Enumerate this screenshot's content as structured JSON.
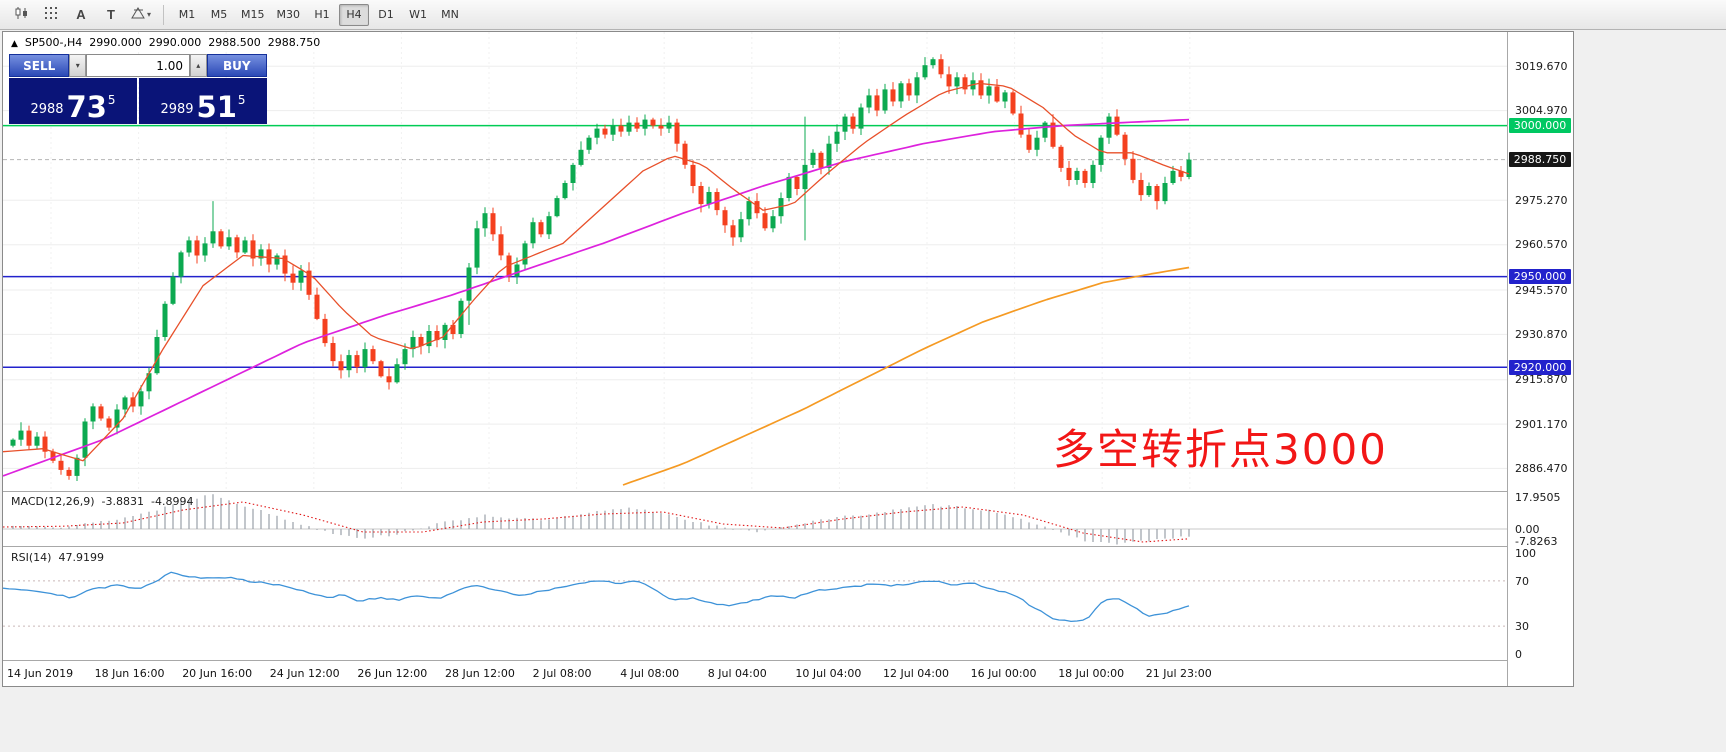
{
  "toolbar": {
    "tools": [
      {
        "name": "chart-type",
        "label": ""
      },
      {
        "name": "grid",
        "label": ""
      },
      {
        "name": "text-annotation",
        "label": "A"
      },
      {
        "name": "text-box",
        "label": "T"
      },
      {
        "name": "shapes",
        "label": ""
      }
    ],
    "timeframes": [
      {
        "label": "M1",
        "active": false
      },
      {
        "label": "M5",
        "active": false
      },
      {
        "label": "M15",
        "active": false
      },
      {
        "label": "M30",
        "active": false
      },
      {
        "label": "H1",
        "active": false
      },
      {
        "label": "H4",
        "active": true
      },
      {
        "label": "D1",
        "active": false
      },
      {
        "label": "W1",
        "active": false
      },
      {
        "label": "MN",
        "active": false
      }
    ]
  },
  "symbol_bar": {
    "symbol": "SP500-,H4",
    "open": "2990.000",
    "high": "2990.000",
    "low": "2988.500",
    "close": "2988.750"
  },
  "trade_panel": {
    "sell_label": "SELL",
    "buy_label": "BUY",
    "volume": "1.00",
    "sell_price": {
      "prefix": "2988",
      "big": "73",
      "sup": "5"
    },
    "buy_price": {
      "prefix": "2989",
      "big": "51",
      "sup": "5"
    }
  },
  "annotation": {
    "text": "多空转折点3000",
    "color": "#f21616"
  },
  "price_axis": {
    "labels": [
      {
        "text": "3019.670",
        "price": 3019.67
      },
      {
        "text": "3004.970",
        "price": 3004.97
      },
      {
        "text": "2975.270",
        "price": 2975.27
      },
      {
        "text": "2960.570",
        "price": 2960.57
      },
      {
        "text": "2945.570",
        "price": 2945.57
      },
      {
        "text": "2930.870",
        "price": 2930.87
      },
      {
        "text": "2915.870",
        "price": 2915.87
      },
      {
        "text": "2901.170",
        "price": 2901.17
      },
      {
        "text": "2886.470",
        "price": 2886.47
      }
    ],
    "badges": [
      {
        "text": "3000.000",
        "price": 3000.0,
        "bg": "#00c862",
        "fg": "#ffffff"
      },
      {
        "text": "2988.750",
        "price": 2988.75,
        "bg": "#161616",
        "fg": "#ffffff"
      },
      {
        "text": "2950.000",
        "price": 2950.0,
        "bg": "#2222cc",
        "fg": "#ffffff"
      },
      {
        "text": "2920.000",
        "price": 2920.0,
        "bg": "#2222cc",
        "fg": "#ffffff"
      }
    ]
  },
  "chart_data": {
    "type": "candlestick",
    "symbol": "SP500-",
    "timeframe": "H4",
    "price_range": [
      2879,
      3031
    ],
    "first_open": 2894,
    "up_color": "#0ca950",
    "down_color": "#f4401f",
    "closes": [
      2896,
      2899,
      2894,
      2897,
      2892,
      2889,
      2886,
      2884,
      2890,
      2902,
      2907,
      2903,
      2900,
      2906,
      2910,
      2907,
      2912,
      2918,
      2930,
      2941,
      2950,
      2958,
      2962,
      2957,
      2961,
      2965,
      2960,
      2963,
      2958,
      2962,
      2956,
      2959,
      2954,
      2957,
      2951,
      2948,
      2952,
      2944,
      2936,
      2928,
      2922,
      2919,
      2924,
      2920,
      2926,
      2922,
      2917,
      2915,
      2921,
      2926,
      2930,
      2927,
      2932,
      2929,
      2934,
      2931,
      2942,
      2953,
      2966,
      2971,
      2964,
      2957,
      2950,
      2954,
      2961,
      2968,
      2964,
      2970,
      2976,
      2981,
      2987,
      2992,
      2996,
      2999,
      2997,
      3000,
      2998,
      3001,
      2999,
      3002,
      3000,
      2999,
      3001,
      2994,
      2987,
      2980,
      2974,
      2978,
      2972,
      2967,
      2963,
      2969,
      2975,
      2971,
      2966,
      2970,
      2976,
      2983,
      2979,
      2987,
      2991,
      2986,
      2994,
      2998,
      3003,
      2999,
      3006,
      3010,
      3005,
      3012,
      3008,
      3014,
      3010,
      3016,
      3020,
      3022,
      3017,
      3013,
      3016,
      3012,
      3015,
      3010,
      3013,
      3008,
      3011,
      3004,
      2997,
      2992,
      2996,
      3001,
      2993,
      2986,
      2982,
      2985,
      2981,
      2987,
      2996,
      3003,
      2997,
      2989,
      2982,
      2977,
      2980,
      2975,
      2981,
      2985,
      2983,
      2988.75
    ],
    "wick_overrides": {
      "25": [
        10,
        1.5
      ],
      "57": [
        1.5,
        8
      ],
      "99": [
        16,
        17
      ]
    },
    "current_price": 2988.75,
    "levels": [
      {
        "price": 3000,
        "color": "#00cc55"
      },
      {
        "price": 2950,
        "color": "#2222cc"
      },
      {
        "price": 2920,
        "color": "#2222cc"
      }
    ],
    "ma_colors": {
      "magenta": "#dd22dd",
      "red": "#e8502a",
      "orange": "#f59a23"
    },
    "ma_magenta": [
      [
        0,
        2884
      ],
      [
        100,
        2896
      ],
      [
        200,
        2912
      ],
      [
        300,
        2928
      ],
      [
        380,
        2937
      ],
      [
        450,
        2944
      ],
      [
        520,
        2952
      ],
      [
        600,
        2961
      ],
      [
        680,
        2971
      ],
      [
        760,
        2980
      ],
      [
        840,
        2988
      ],
      [
        920,
        2994
      ],
      [
        990,
        2998
      ],
      [
        1060,
        3000
      ],
      [
        1120,
        3001
      ],
      [
        1186,
        3002
      ]
    ],
    "ma_red": [
      [
        0,
        2892
      ],
      [
        40,
        2893
      ],
      [
        80,
        2889
      ],
      [
        120,
        2903
      ],
      [
        160,
        2926
      ],
      [
        200,
        2947
      ],
      [
        240,
        2957
      ],
      [
        280,
        2956
      ],
      [
        310,
        2950
      ],
      [
        340,
        2939
      ],
      [
        370,
        2930
      ],
      [
        410,
        2926
      ],
      [
        440,
        2930
      ],
      [
        470,
        2942
      ],
      [
        500,
        2953
      ],
      [
        530,
        2957
      ],
      [
        560,
        2961
      ],
      [
        600,
        2973
      ],
      [
        640,
        2985
      ],
      [
        670,
        2990
      ],
      [
        700,
        2987
      ],
      [
        730,
        2979
      ],
      [
        760,
        2972
      ],
      [
        790,
        2974
      ],
      [
        820,
        2983
      ],
      [
        860,
        2994
      ],
      [
        900,
        3003
      ],
      [
        940,
        3011
      ],
      [
        975,
        3014
      ],
      [
        1005,
        3013
      ],
      [
        1040,
        3006
      ],
      [
        1070,
        2997
      ],
      [
        1100,
        2991
      ],
      [
        1130,
        2991
      ],
      [
        1160,
        2987
      ],
      [
        1186,
        2984
      ]
    ],
    "ma_orange": [
      [
        620,
        2881
      ],
      [
        680,
        2888
      ],
      [
        740,
        2897
      ],
      [
        800,
        2906
      ],
      [
        860,
        2916
      ],
      [
        920,
        2926
      ],
      [
        980,
        2935
      ],
      [
        1040,
        2942
      ],
      [
        1100,
        2948
      ],
      [
        1150,
        2951
      ],
      [
        1186,
        2953
      ]
    ],
    "x_labels": [
      "14 Jun 2019",
      "18 Jun 16:00",
      "20 Jun 16:00",
      "24 Jun 12:00",
      "26 Jun 12:00",
      "28 Jun 12:00",
      "2 Jul 08:00",
      "4 Jul 08:00",
      "8 Jul 04:00",
      "10 Jul 04:00",
      "12 Jul 04:00",
      "16 Jul 00:00",
      "18 Jul 00:00",
      "21 Jul 23:00"
    ],
    "macd": {
      "name": "MACD(12,26,9)",
      "value_main": "-3.8831",
      "value_signal": "-4.8994",
      "range": [
        -8.5,
        18.5
      ],
      "hist_color": "#9aa0a8",
      "signal_color": "#e01818",
      "axis": [
        {
          "text": "17.9505",
          "v": 17.9505
        },
        {
          "text": "0.00",
          "v": 0
        },
        {
          "text": "-7.8263",
          "v": -7.8263
        }
      ],
      "hist": [
        [
          0,
          1.2
        ],
        [
          30,
          2
        ],
        [
          60,
          1
        ],
        [
          90,
          3
        ],
        [
          120,
          5.5
        ],
        [
          150,
          9
        ],
        [
          180,
          14
        ],
        [
          210,
          17.5
        ],
        [
          240,
          12
        ],
        [
          270,
          7
        ],
        [
          300,
          2
        ],
        [
          330,
          -2
        ],
        [
          360,
          -4.5
        ],
        [
          390,
          -3
        ],
        [
          420,
          1
        ],
        [
          450,
          4
        ],
        [
          480,
          7
        ],
        [
          510,
          5.5
        ],
        [
          540,
          4.5
        ],
        [
          570,
          6.5
        ],
        [
          600,
          9
        ],
        [
          630,
          10.5
        ],
        [
          660,
          8
        ],
        [
          690,
          4
        ],
        [
          720,
          0.5
        ],
        [
          750,
          -1.5
        ],
        [
          780,
          1
        ],
        [
          810,
          4
        ],
        [
          840,
          6
        ],
        [
          870,
          8
        ],
        [
          900,
          10
        ],
        [
          930,
          12
        ],
        [
          960,
          11
        ],
        [
          990,
          9
        ],
        [
          1020,
          5
        ],
        [
          1050,
          -1
        ],
        [
          1080,
          -5.5
        ],
        [
          1110,
          -7.5
        ],
        [
          1140,
          -6
        ],
        [
          1165,
          -5
        ],
        [
          1186,
          -3.88
        ]
      ],
      "signal": [
        [
          0,
          1
        ],
        [
          60,
          1.4
        ],
        [
          120,
          3
        ],
        [
          180,
          9.5
        ],
        [
          240,
          13.5
        ],
        [
          300,
          7
        ],
        [
          360,
          -1.5
        ],
        [
          420,
          -1.5
        ],
        [
          480,
          3.5
        ],
        [
          540,
          5
        ],
        [
          600,
          7.5
        ],
        [
          660,
          8.5
        ],
        [
          720,
          2.5
        ],
        [
          780,
          0.5
        ],
        [
          840,
          5
        ],
        [
          900,
          8.5
        ],
        [
          960,
          11
        ],
        [
          1020,
          7
        ],
        [
          1080,
          -2
        ],
        [
          1140,
          -6.5
        ],
        [
          1186,
          -4.9
        ]
      ]
    },
    "rsi": {
      "name": "RSI(14)",
      "value": "47.9199",
      "range": [
        0,
        100
      ],
      "line_color": "#3d92d8",
      "axis": [
        {
          "text": "100",
          "v": 100
        },
        {
          "text": "70",
          "v": 70
        },
        {
          "text": "30",
          "v": 30
        },
        {
          "text": "0",
          "v": 0
        }
      ],
      "levels": [
        70,
        30
      ],
      "points": [
        [
          0,
          64
        ],
        [
          25,
          62
        ],
        [
          50,
          59
        ],
        [
          70,
          55
        ],
        [
          90,
          63
        ],
        [
          115,
          66
        ],
        [
          135,
          63
        ],
        [
          155,
          71
        ],
        [
          168,
          78
        ],
        [
          185,
          74
        ],
        [
          205,
          72
        ],
        [
          225,
          73
        ],
        [
          245,
          70
        ],
        [
          265,
          68
        ],
        [
          285,
          65
        ],
        [
          305,
          60
        ],
        [
          325,
          55
        ],
        [
          340,
          58
        ],
        [
          355,
          52
        ],
        [
          375,
          55
        ],
        [
          395,
          53
        ],
        [
          415,
          57
        ],
        [
          435,
          54
        ],
        [
          455,
          62
        ],
        [
          475,
          66
        ],
        [
          495,
          62
        ],
        [
          515,
          57
        ],
        [
          535,
          60
        ],
        [
          555,
          64
        ],
        [
          575,
          67
        ],
        [
          595,
          70
        ],
        [
          615,
          68
        ],
        [
          635,
          70
        ],
        [
          655,
          60
        ],
        [
          670,
          53
        ],
        [
          690,
          55
        ],
        [
          710,
          50
        ],
        [
          730,
          48
        ],
        [
          750,
          53
        ],
        [
          770,
          57
        ],
        [
          790,
          55
        ],
        [
          810,
          61
        ],
        [
          830,
          63
        ],
        [
          850,
          65
        ],
        [
          870,
          67
        ],
        [
          890,
          66
        ],
        [
          910,
          68
        ],
        [
          930,
          70
        ],
        [
          950,
          66
        ],
        [
          970,
          68
        ],
        [
          990,
          62
        ],
        [
          1010,
          58
        ],
        [
          1030,
          47
        ],
        [
          1050,
          37
        ],
        [
          1070,
          33
        ],
        [
          1085,
          37
        ],
        [
          1100,
          52
        ],
        [
          1115,
          55
        ],
        [
          1130,
          47
        ],
        [
          1145,
          38
        ],
        [
          1160,
          41
        ],
        [
          1173,
          45
        ],
        [
          1186,
          47.92
        ]
      ]
    }
  }
}
